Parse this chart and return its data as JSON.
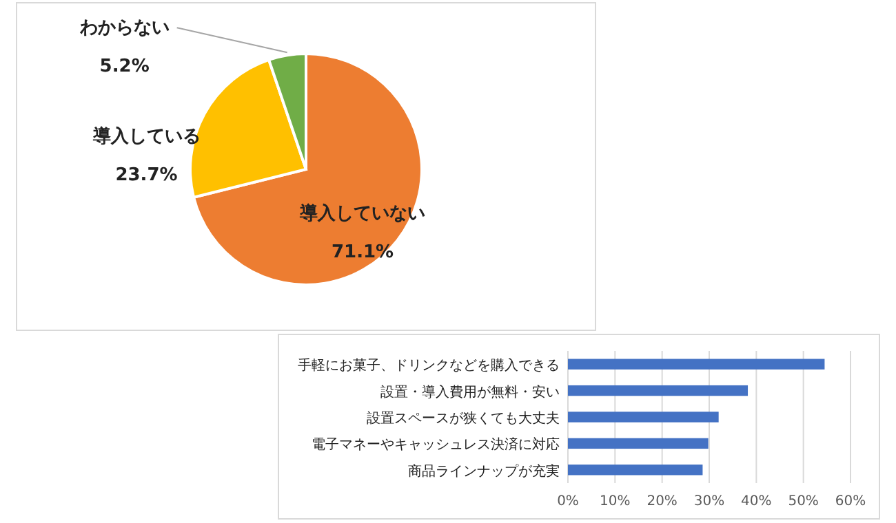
{
  "chart_data": [
    {
      "type": "pie",
      "categories": [
        "導入していない",
        "導入している",
        "わからない"
      ],
      "values": [
        71.1,
        23.7,
        5.2
      ],
      "colors": [
        "#ed7d31",
        "#ffc000",
        "#70ad47"
      ],
      "value_labels": [
        "71.1%",
        "23.7%",
        "5.2%"
      ]
    },
    {
      "type": "bar",
      "orientation": "horizontal",
      "categories": [
        "手軽にお菓子、ドリンクなどを購入できる",
        "設置・導入費用が無料・安い",
        "設置スペースが狭くても大丈夫",
        "電子マネーやキャッシュレス決済に対応",
        "商品ラインナップが充実"
      ],
      "series": [
        {
          "color": "#4472c4",
          "values": [
            54.5,
            38.2,
            32.0,
            29.8,
            28.6
          ]
        }
      ],
      "xlim": [
        0,
        60
      ],
      "xticks": [
        {
          "value": 0,
          "label": "0%"
        },
        {
          "value": 10,
          "label": "10%"
        },
        {
          "value": 20,
          "label": "20%"
        },
        {
          "value": 30,
          "label": "30%"
        },
        {
          "value": 40,
          "label": "40%"
        },
        {
          "value": 50,
          "label": "50%"
        },
        {
          "value": 60,
          "label": "60%"
        }
      ],
      "grid": "x"
    }
  ]
}
